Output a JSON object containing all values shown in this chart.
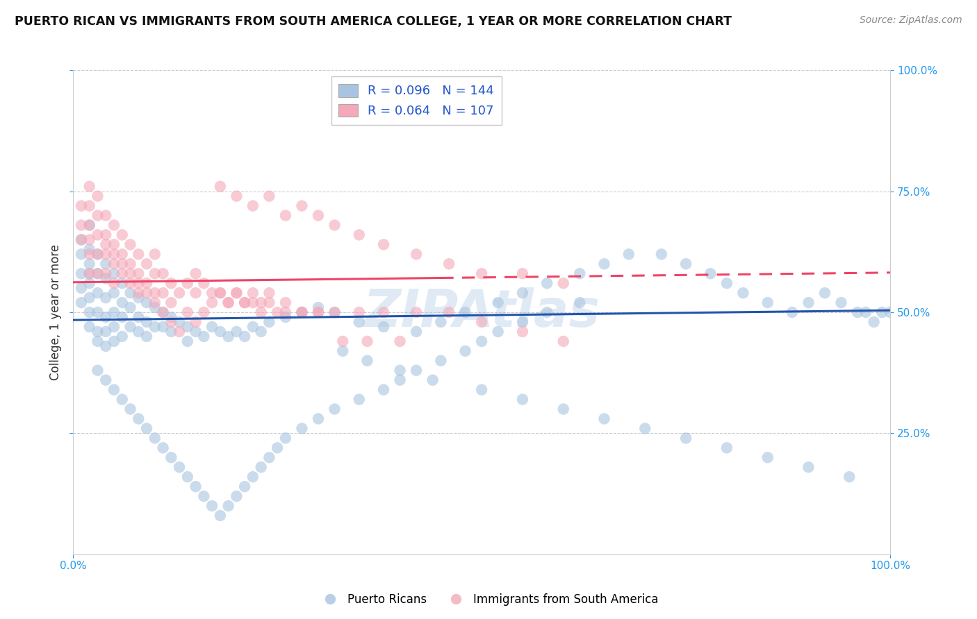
{
  "title": "PUERTO RICAN VS IMMIGRANTS FROM SOUTH AMERICA COLLEGE, 1 YEAR OR MORE CORRELATION CHART",
  "source": "Source: ZipAtlas.com",
  "ylabel": "College, 1 year or more",
  "blue_R": 0.096,
  "blue_N": 144,
  "pink_R": 0.064,
  "pink_N": 107,
  "blue_color": "#A8C4E0",
  "pink_color": "#F4A8B8",
  "blue_line_color": "#2255AA",
  "pink_line_color": "#EE4466",
  "watermark": "ZIPAtlas",
  "legend_label_blue": "Puerto Ricans",
  "legend_label_pink": "Immigrants from South America",
  "blue_scatter_x": [
    0.01,
    0.01,
    0.01,
    0.01,
    0.01,
    0.02,
    0.02,
    0.02,
    0.02,
    0.02,
    0.02,
    0.02,
    0.02,
    0.03,
    0.03,
    0.03,
    0.03,
    0.03,
    0.03,
    0.04,
    0.04,
    0.04,
    0.04,
    0.04,
    0.04,
    0.05,
    0.05,
    0.05,
    0.05,
    0.05,
    0.06,
    0.06,
    0.06,
    0.06,
    0.07,
    0.07,
    0.07,
    0.08,
    0.08,
    0.08,
    0.09,
    0.09,
    0.09,
    0.1,
    0.1,
    0.11,
    0.11,
    0.12,
    0.12,
    0.13,
    0.14,
    0.14,
    0.15,
    0.16,
    0.17,
    0.18,
    0.19,
    0.2,
    0.21,
    0.22,
    0.23,
    0.24,
    0.26,
    0.28,
    0.3,
    0.32,
    0.35,
    0.38,
    0.42,
    0.45,
    0.48,
    0.52,
    0.55,
    0.58,
    0.62,
    0.65,
    0.68,
    0.72,
    0.75,
    0.78,
    0.8,
    0.82,
    0.85,
    0.88,
    0.9,
    0.92,
    0.94,
    0.96,
    0.97,
    0.98,
    0.99,
    1.0,
    0.33,
    0.36,
    0.4,
    0.44,
    0.5,
    0.55,
    0.6,
    0.65,
    0.7,
    0.75,
    0.8,
    0.85,
    0.9,
    0.95,
    0.03,
    0.04,
    0.05,
    0.06,
    0.07,
    0.08,
    0.09,
    0.1,
    0.11,
    0.12,
    0.13,
    0.14,
    0.15,
    0.16,
    0.17,
    0.18,
    0.19,
    0.2,
    0.21,
    0.22,
    0.23,
    0.24,
    0.25,
    0.26,
    0.28,
    0.3,
    0.32,
    0.35,
    0.38,
    0.4,
    0.42,
    0.45,
    0.48,
    0.5,
    0.52,
    0.55,
    0.58,
    0.62
  ],
  "blue_scatter_y": [
    0.62,
    0.58,
    0.55,
    0.52,
    0.65,
    0.6,
    0.56,
    0.53,
    0.68,
    0.63,
    0.58,
    0.5,
    0.47,
    0.62,
    0.58,
    0.54,
    0.5,
    0.46,
    0.44,
    0.6,
    0.57,
    0.53,
    0.49,
    0.46,
    0.43,
    0.58,
    0.54,
    0.5,
    0.47,
    0.44,
    0.56,
    0.52,
    0.49,
    0.45,
    0.54,
    0.51,
    0.47,
    0.53,
    0.49,
    0.46,
    0.52,
    0.48,
    0.45,
    0.51,
    0.47,
    0.5,
    0.47,
    0.49,
    0.46,
    0.48,
    0.47,
    0.44,
    0.46,
    0.45,
    0.47,
    0.46,
    0.45,
    0.46,
    0.45,
    0.47,
    0.46,
    0.48,
    0.49,
    0.5,
    0.51,
    0.5,
    0.48,
    0.47,
    0.46,
    0.48,
    0.5,
    0.52,
    0.54,
    0.56,
    0.58,
    0.6,
    0.62,
    0.62,
    0.6,
    0.58,
    0.56,
    0.54,
    0.52,
    0.5,
    0.52,
    0.54,
    0.52,
    0.5,
    0.5,
    0.48,
    0.5,
    0.5,
    0.42,
    0.4,
    0.38,
    0.36,
    0.34,
    0.32,
    0.3,
    0.28,
    0.26,
    0.24,
    0.22,
    0.2,
    0.18,
    0.16,
    0.38,
    0.36,
    0.34,
    0.32,
    0.3,
    0.28,
    0.26,
    0.24,
    0.22,
    0.2,
    0.18,
    0.16,
    0.14,
    0.12,
    0.1,
    0.08,
    0.1,
    0.12,
    0.14,
    0.16,
    0.18,
    0.2,
    0.22,
    0.24,
    0.26,
    0.28,
    0.3,
    0.32,
    0.34,
    0.36,
    0.38,
    0.4,
    0.42,
    0.44,
    0.46,
    0.48,
    0.5,
    0.52
  ],
  "pink_scatter_x": [
    0.01,
    0.01,
    0.01,
    0.02,
    0.02,
    0.02,
    0.02,
    0.02,
    0.02,
    0.03,
    0.03,
    0.03,
    0.03,
    0.03,
    0.04,
    0.04,
    0.04,
    0.04,
    0.05,
    0.05,
    0.05,
    0.05,
    0.06,
    0.06,
    0.06,
    0.07,
    0.07,
    0.07,
    0.08,
    0.08,
    0.08,
    0.09,
    0.09,
    0.1,
    0.1,
    0.1,
    0.11,
    0.11,
    0.12,
    0.12,
    0.13,
    0.14,
    0.15,
    0.15,
    0.16,
    0.17,
    0.18,
    0.19,
    0.2,
    0.21,
    0.22,
    0.23,
    0.24,
    0.25,
    0.26,
    0.28,
    0.3,
    0.18,
    0.2,
    0.22,
    0.24,
    0.26,
    0.28,
    0.3,
    0.32,
    0.35,
    0.38,
    0.42,
    0.46,
    0.5,
    0.55,
    0.6,
    0.04,
    0.05,
    0.06,
    0.07,
    0.08,
    0.09,
    0.1,
    0.11,
    0.12,
    0.13,
    0.14,
    0.15,
    0.16,
    0.17,
    0.18,
    0.19,
    0.2,
    0.21,
    0.22,
    0.23,
    0.24,
    0.26,
    0.28,
    0.3,
    0.32,
    0.35,
    0.38,
    0.42,
    0.46,
    0.5,
    0.55,
    0.6,
    0.33,
    0.36,
    0.4
  ],
  "pink_scatter_y": [
    0.72,
    0.68,
    0.65,
    0.76,
    0.72,
    0.68,
    0.65,
    0.62,
    0.58,
    0.74,
    0.7,
    0.66,
    0.62,
    0.58,
    0.7,
    0.66,
    0.62,
    0.58,
    0.68,
    0.64,
    0.6,
    0.56,
    0.66,
    0.62,
    0.58,
    0.64,
    0.6,
    0.56,
    0.62,
    0.58,
    0.54,
    0.6,
    0.56,
    0.62,
    0.58,
    0.54,
    0.58,
    0.54,
    0.56,
    0.52,
    0.54,
    0.56,
    0.58,
    0.54,
    0.56,
    0.54,
    0.54,
    0.52,
    0.54,
    0.52,
    0.52,
    0.5,
    0.52,
    0.5,
    0.5,
    0.5,
    0.5,
    0.76,
    0.74,
    0.72,
    0.74,
    0.7,
    0.72,
    0.7,
    0.68,
    0.66,
    0.64,
    0.62,
    0.6,
    0.58,
    0.58,
    0.56,
    0.64,
    0.62,
    0.6,
    0.58,
    0.56,
    0.54,
    0.52,
    0.5,
    0.48,
    0.46,
    0.5,
    0.48,
    0.5,
    0.52,
    0.54,
    0.52,
    0.54,
    0.52,
    0.54,
    0.52,
    0.54,
    0.52,
    0.5,
    0.5,
    0.5,
    0.5,
    0.5,
    0.5,
    0.5,
    0.48,
    0.46,
    0.44,
    0.44,
    0.44,
    0.44
  ]
}
